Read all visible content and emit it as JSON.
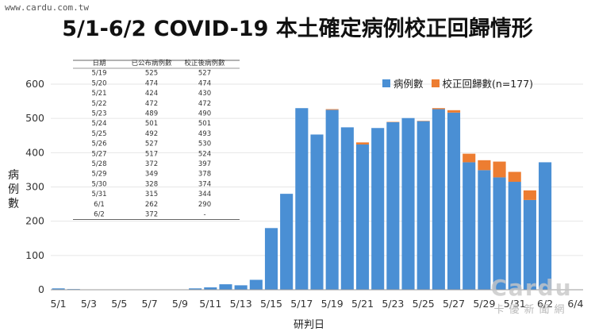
{
  "watermark": {
    "site": "www.cardu.com.tw",
    "logo": "Cardu",
    "name": "卡優新聞網"
  },
  "chart_data": {
    "type": "bar",
    "title": "5/1-6/2 COVID-19 本土確定病例校正回歸情形",
    "xlabel": "研判日",
    "ylabel": "病例數",
    "ylim": [
      0,
      600
    ],
    "yticks": [
      0,
      100,
      200,
      300,
      400,
      500,
      600
    ],
    "legend_position": "top-right",
    "colors": {
      "cases": "#4a8fd4",
      "corrected": "#ed7d31"
    },
    "categories": [
      "5/1",
      "5/2",
      "5/3",
      "5/4",
      "5/5",
      "5/6",
      "5/7",
      "5/8",
      "5/9",
      "5/10",
      "5/11",
      "5/12",
      "5/13",
      "5/14",
      "5/15",
      "5/16",
      "5/17",
      "5/18",
      "5/19",
      "5/20",
      "5/21",
      "5/22",
      "5/23",
      "5/24",
      "5/25",
      "5/26",
      "5/27",
      "5/28",
      "5/29",
      "5/30",
      "5/31",
      "6/1",
      "6/2",
      "6/3",
      "6/4"
    ],
    "x_tick_labels": [
      "5/1",
      "5/3",
      "5/5",
      "5/7",
      "5/9",
      "5/11",
      "5/13",
      "5/15",
      "5/17",
      "5/19",
      "5/21",
      "5/23",
      "5/25",
      "5/27",
      "5/29",
      "5/31",
      "6/2",
      "6/4"
    ],
    "series": [
      {
        "name": "病例數",
        "values": [
          4,
          2,
          0,
          0,
          0,
          0,
          0,
          0,
          1,
          4,
          7,
          16,
          13,
          29,
          180,
          280,
          530,
          453,
          525,
          474,
          424,
          472,
          489,
          501,
          492,
          527,
          517,
          372,
          349,
          328,
          315,
          262,
          372,
          0,
          0
        ]
      },
      {
        "name": "校正回歸數(n=177)",
        "values": [
          0,
          0,
          0,
          0,
          0,
          0,
          0,
          0,
          0,
          0,
          0,
          0,
          0,
          0,
          0,
          0,
          0,
          0,
          2,
          0,
          6,
          0,
          1,
          0,
          1,
          3,
          7,
          25,
          29,
          46,
          29,
          28,
          0,
          0,
          0
        ]
      }
    ]
  },
  "table": {
    "headers": [
      "日期",
      "已公布病例數",
      "校正後病例數"
    ],
    "rows": [
      [
        "5/19",
        "525",
        "527"
      ],
      [
        "5/20",
        "474",
        "474"
      ],
      [
        "5/21",
        "424",
        "430"
      ],
      [
        "5/22",
        "472",
        "472"
      ],
      [
        "5/23",
        "489",
        "490"
      ],
      [
        "5/24",
        "501",
        "501"
      ],
      [
        "5/25",
        "492",
        "493"
      ],
      [
        "5/26",
        "527",
        "530"
      ],
      [
        "5/27",
        "517",
        "524"
      ],
      [
        "5/28",
        "372",
        "397"
      ],
      [
        "5/29",
        "349",
        "378"
      ],
      [
        "5/30",
        "328",
        "374"
      ],
      [
        "5/31",
        "315",
        "344"
      ],
      [
        "6/1",
        "262",
        "290"
      ],
      [
        "6/2",
        "372",
        "-"
      ]
    ]
  }
}
